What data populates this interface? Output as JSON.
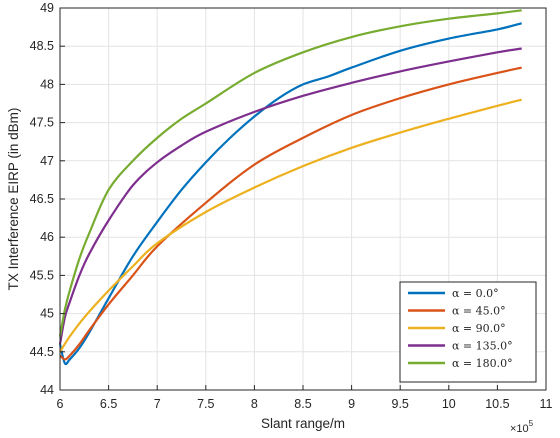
{
  "chart_data": {
    "type": "line",
    "title": "",
    "xlabel": "Slant range/m",
    "ylabel": "TX Interference EIRP (in dBm)",
    "x_multiplier_label": "×10",
    "x_multiplier_exponent": "5",
    "xlim": [
      6,
      11
    ],
    "ylim": [
      44,
      49
    ],
    "xticks": [
      "6",
      "6.5",
      "7",
      "7.5",
      "8",
      "8.5",
      "9",
      "9.5",
      "10",
      "10.5",
      "11"
    ],
    "yticks": [
      "44",
      "44.5",
      "45",
      "45.5",
      "46",
      "46.5",
      "47",
      "47.5",
      "48",
      "48.5",
      "49"
    ],
    "grid": true,
    "legend_position": "bottom-right",
    "series": [
      {
        "name": "α = 0.0°",
        "color": "#0072BD",
        "x": [
          6.0,
          6.05,
          6.1,
          6.2,
          6.3,
          6.5,
          6.75,
          7.0,
          7.25,
          7.5,
          7.75,
          8.0,
          8.25,
          8.5,
          8.75,
          9.0,
          9.5,
          10.0,
          10.5,
          10.75
        ],
        "values": [
          44.6,
          44.35,
          44.4,
          44.55,
          44.75,
          45.2,
          45.75,
          46.2,
          46.62,
          46.98,
          47.3,
          47.58,
          47.82,
          48.0,
          48.1,
          48.22,
          48.44,
          48.6,
          48.72,
          48.8
        ]
      },
      {
        "name": "α = 45.0°",
        "color": "#D95319",
        "x": [
          6.0,
          6.05,
          6.1,
          6.2,
          6.3,
          6.5,
          6.75,
          7.0,
          7.5,
          8.0,
          8.5,
          9.0,
          9.5,
          10.0,
          10.5,
          10.75
        ],
        "values": [
          44.45,
          44.4,
          44.45,
          44.6,
          44.78,
          45.12,
          45.5,
          45.88,
          46.45,
          46.95,
          47.3,
          47.6,
          47.82,
          48.0,
          48.15,
          48.22
        ]
      },
      {
        "name": "α = 90.0°",
        "color": "#EDB120",
        "x": [
          6.0,
          6.1,
          6.25,
          6.5,
          6.75,
          7.0,
          7.5,
          8.0,
          8.5,
          9.0,
          9.5,
          10.0,
          10.5,
          10.75
        ],
        "values": [
          44.5,
          44.7,
          44.95,
          45.3,
          45.62,
          45.92,
          46.33,
          46.65,
          46.93,
          47.17,
          47.37,
          47.55,
          47.72,
          47.8
        ]
      },
      {
        "name": "α = 135.0°",
        "color": "#7E2F8E",
        "x": [
          6.0,
          6.05,
          6.1,
          6.2,
          6.3,
          6.5,
          6.75,
          7.0,
          7.25,
          7.5,
          8.0,
          8.5,
          9.0,
          9.5,
          10.0,
          10.5,
          10.75
        ],
        "values": [
          44.6,
          44.95,
          45.15,
          45.5,
          45.78,
          46.22,
          46.68,
          46.98,
          47.2,
          47.38,
          47.64,
          47.85,
          48.02,
          48.17,
          48.3,
          48.42,
          48.47
        ]
      },
      {
        "name": "α = 180.0°",
        "color": "#77AC30",
        "x": [
          6.0,
          6.05,
          6.1,
          6.2,
          6.3,
          6.5,
          6.75,
          7.0,
          7.25,
          7.5,
          8.0,
          8.5,
          9.0,
          9.5,
          10.0,
          10.5,
          10.75
        ],
        "values": [
          44.7,
          45.05,
          45.3,
          45.72,
          46.05,
          46.62,
          47.0,
          47.3,
          47.55,
          47.75,
          48.15,
          48.42,
          48.62,
          48.76,
          48.86,
          48.93,
          48.97
        ]
      }
    ]
  }
}
